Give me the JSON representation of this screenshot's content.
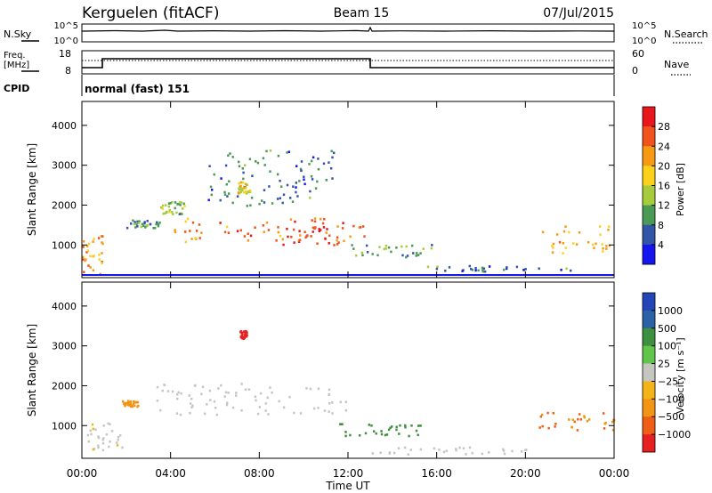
{
  "header": {
    "station": "Kerguelen (fitACF)",
    "beam": "Beam 15",
    "date": "07/Jul/2015"
  },
  "status_panels": {
    "nsky": {
      "label": "N.Sky",
      "ticks": [
        "10^5",
        "10^0"
      ]
    },
    "nsearch": {
      "label": "N.Search",
      "ticks": [
        "10^5",
        "10^0"
      ]
    },
    "freq": {
      "label_line1": "Freq.",
      "label_line2": "[MHz]",
      "ticks": [
        "18",
        "8"
      ]
    },
    "nave": {
      "label": "Nave",
      "ticks": [
        "60",
        "0"
      ]
    },
    "cpid": {
      "label": "CPID",
      "mode": "normal (fast) 151"
    }
  },
  "axes": {
    "xlabel": "Time UT",
    "x_ticks": [
      "00:00",
      "04:00",
      "08:00",
      "12:00",
      "16:00",
      "20:00",
      "00:00"
    ],
    "xlim_hours": [
      0,
      24
    ],
    "ylabel": "Slant Range [km]",
    "y_ticks": [
      "1000",
      "2000",
      "3000",
      "4000"
    ],
    "ylim_km": [
      180,
      4600
    ]
  },
  "colorbars": {
    "power": {
      "label": "Power [dB]",
      "ticks": [
        "28",
        "24",
        "20",
        "16",
        "12",
        "8",
        "4"
      ],
      "colors_top_to_bottom": [
        "#e8171b",
        "#f2531c",
        "#f59a12",
        "#fbd11c",
        "#a6cc3b",
        "#4a9a55",
        "#3355a8",
        "#1515ee"
      ]
    },
    "velocity": {
      "label": "Velocity [m s⁻¹]",
      "ticks": [
        "1000",
        "500",
        "100",
        "25",
        "−25",
        "−100",
        "−500",
        "−1000"
      ],
      "colors_top_to_bottom": [
        "#2445b8",
        "#2b62a6",
        "#3f8f40",
        "#60c54a",
        "#c6c6c0",
        "#f2b418",
        "#f39514",
        "#ef5e17",
        "#e62020"
      ]
    }
  },
  "chart_data": [
    {
      "type": "heatmap",
      "title": "",
      "ylabel": "Slant Range [km]",
      "xlabel": "",
      "quantity": "Power [dB]",
      "regions": [
        {
          "t": [
            0.0,
            0.9
          ],
          "r": [
            300,
            1250
          ],
          "value": 22
        },
        {
          "t": [
            2.0,
            3.6
          ],
          "r": [
            1450,
            1650
          ],
          "value": 9
        },
        {
          "t": [
            3.5,
            4.6
          ],
          "r": [
            1800,
            2100
          ],
          "value": 12
        },
        {
          "t": [
            4.0,
            12.8
          ],
          "r": [
            1100,
            1700
          ],
          "value": 24
        },
        {
          "t": [
            9.0,
            11.8
          ],
          "r": [
            1000,
            1500
          ],
          "value": 28
        },
        {
          "t": [
            12.0,
            15.8
          ],
          "r": [
            700,
            1050
          ],
          "value": 10
        },
        {
          "t": [
            5.5,
            11.5
          ],
          "r": [
            2000,
            3400
          ],
          "value": 8
        },
        {
          "t": [
            7.0,
            7.6
          ],
          "r": [
            2300,
            2600
          ],
          "value": 18
        },
        {
          "t": [
            15.5,
            22.0
          ],
          "r": [
            350,
            500
          ],
          "value": 8
        },
        {
          "t": [
            20.5,
            24.0
          ],
          "r": [
            800,
            1500
          ],
          "value": 20
        }
      ]
    },
    {
      "type": "heatmap",
      "title": "",
      "ylabel": "Slant Range [km]",
      "xlabel": "Time UT",
      "quantity": "Velocity [m s⁻¹]",
      "regions": [
        {
          "t": [
            0.0,
            1.8
          ],
          "r": [
            400,
            1100
          ],
          "value": -10
        },
        {
          "t": [
            1.8,
            2.5
          ],
          "r": [
            1500,
            1650
          ],
          "value": -120
        },
        {
          "t": [
            3.3,
            12.0
          ],
          "r": [
            1300,
            2100
          ],
          "value": 0
        },
        {
          "t": [
            7.1,
            7.4
          ],
          "r": [
            3200,
            3400
          ],
          "value": -900
        },
        {
          "t": [
            11.5,
            15.5
          ],
          "r": [
            700,
            1100
          ],
          "value": 150
        },
        {
          "t": [
            13.0,
            20.0
          ],
          "r": [
            300,
            500
          ],
          "value": 0
        },
        {
          "t": [
            20.5,
            24.0
          ],
          "r": [
            900,
            1350
          ],
          "value": -300
        }
      ]
    }
  ]
}
